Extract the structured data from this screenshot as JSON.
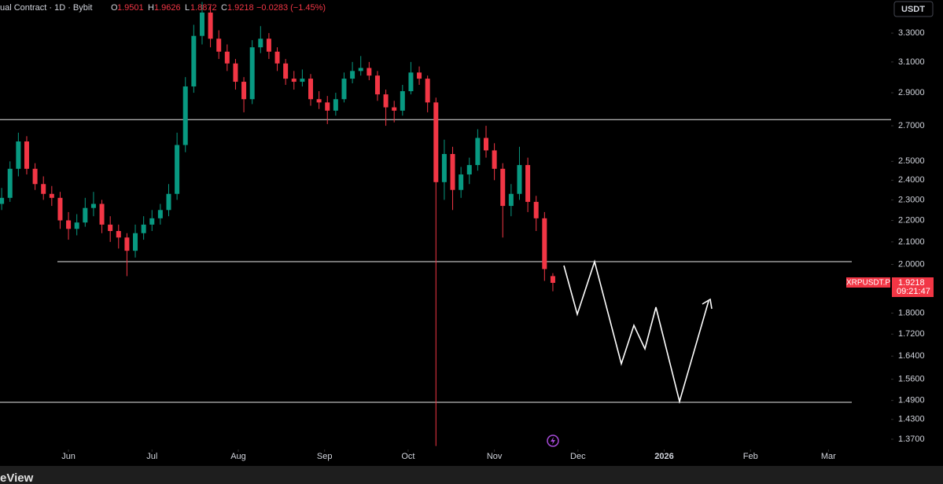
{
  "header": {
    "symbol": "ual Contract · 1D · Bybit",
    "open_label": "O",
    "high_label": "H",
    "low_label": "L",
    "close_label": "C",
    "change": "−0.0283 (−1.45%)",
    "currency_button": "USDT",
    "ticker_tag": "XRPUSDT.P",
    "countdown": "09:21:47",
    "footer": "eView"
  },
  "chart_data": {
    "type": "candlestick",
    "log": true,
    "up_color": "#089981",
    "down_color": "#f23645",
    "ylim": [
      1.34,
      3.545
    ],
    "yticks": [
      {
        "value": 3.3,
        "label": "3.3000"
      },
      {
        "value": 3.1,
        "label": "3.1000"
      },
      {
        "value": 2.9,
        "label": "2.9000"
      },
      {
        "value": 2.7,
        "label": "2.7000"
      },
      {
        "value": 2.5,
        "label": "2.5000"
      },
      {
        "value": 2.4,
        "label": "2.4000"
      },
      {
        "value": 2.3,
        "label": "2.3000"
      },
      {
        "value": 2.2,
        "label": "2.2000"
      },
      {
        "value": 2.1,
        "label": "2.1000"
      },
      {
        "value": 2,
        "label": "2.0000"
      },
      {
        "value": 1.8,
        "label": "1.8000"
      },
      {
        "value": 1.72,
        "label": "1.7200"
      },
      {
        "value": 1.64,
        "label": "1.6400"
      },
      {
        "value": 1.56,
        "label": "1.5600"
      },
      {
        "value": 1.49,
        "label": "1.4900"
      },
      {
        "value": 1.43,
        "label": "1.4300"
      },
      {
        "value": 1.37,
        "label": "1.3700"
      }
    ],
    "xlim": [
      -24.6,
      295.5
    ],
    "xticks": [
      {
        "value": 0,
        "label": "Jun"
      },
      {
        "value": 30,
        "label": "Jul"
      },
      {
        "value": 61,
        "label": "Aug"
      },
      {
        "value": 92,
        "label": "Sep"
      },
      {
        "value": 122,
        "label": "Oct"
      },
      {
        "value": 153,
        "label": "Nov"
      },
      {
        "value": 183,
        "label": "Dec"
      },
      {
        "value": 214,
        "label": "2026",
        "bold": true
      },
      {
        "value": 245,
        "label": "Feb"
      },
      {
        "value": 273,
        "label": "Mar"
      }
    ],
    "x": [
      -24,
      -21,
      -18,
      -15,
      -12,
      -9,
      -6,
      -3,
      0,
      3,
      6,
      9,
      12,
      15,
      18,
      21,
      24,
      27,
      30,
      33,
      36,
      39,
      42,
      45,
      48,
      51,
      54,
      57,
      60,
      63,
      66,
      69,
      72,
      75,
      78,
      81,
      84,
      87,
      90,
      93,
      96,
      99,
      102,
      105,
      108,
      111,
      114,
      117,
      120,
      123,
      126,
      129,
      132,
      135,
      138,
      141,
      144,
      147,
      150,
      153,
      156,
      159,
      162,
      165,
      168,
      171,
      174
    ],
    "ohlc": [
      [
        2.28,
        2.36,
        2.25,
        2.31
      ],
      [
        2.31,
        2.5,
        2.29,
        2.46
      ],
      [
        2.46,
        2.66,
        2.42,
        2.61
      ],
      [
        2.61,
        2.64,
        2.43,
        2.46
      ],
      [
        2.46,
        2.49,
        2.35,
        2.38
      ],
      [
        2.38,
        2.42,
        2.3,
        2.33
      ],
      [
        2.33,
        2.37,
        2.27,
        2.31
      ],
      [
        2.31,
        2.34,
        2.16,
        2.2
      ],
      [
        2.2,
        2.24,
        2.11,
        2.16
      ],
      [
        2.16,
        2.23,
        2.13,
        2.19
      ],
      [
        2.19,
        2.31,
        2.17,
        2.26
      ],
      [
        2.26,
        2.34,
        2.22,
        2.28
      ],
      [
        2.28,
        2.3,
        2.14,
        2.18
      ],
      [
        2.18,
        2.22,
        2.1,
        2.15
      ],
      [
        2.15,
        2.18,
        2.07,
        2.12
      ],
      [
        2.12,
        2.14,
        1.95,
        2.06
      ],
      [
        2.06,
        2.18,
        2.03,
        2.14
      ],
      [
        2.14,
        2.22,
        2.11,
        2.18
      ],
      [
        2.18,
        2.25,
        2.15,
        2.21
      ],
      [
        2.21,
        2.28,
        2.18,
        2.25
      ],
      [
        2.25,
        2.38,
        2.22,
        2.33
      ],
      [
        2.33,
        2.66,
        2.3,
        2.59
      ],
      [
        2.59,
        3.0,
        2.55,
        2.94
      ],
      [
        2.94,
        3.36,
        2.9,
        3.28
      ],
      [
        3.28,
        3.53,
        3.22,
        3.45
      ],
      [
        3.45,
        3.5,
        3.2,
        3.26
      ],
      [
        3.26,
        3.32,
        3.12,
        3.17
      ],
      [
        3.17,
        3.22,
        3.04,
        3.09
      ],
      [
        3.09,
        3.12,
        2.92,
        2.97
      ],
      [
        2.97,
        3.0,
        2.78,
        2.86
      ],
      [
        2.86,
        3.25,
        2.83,
        3.2
      ],
      [
        3.2,
        3.35,
        3.16,
        3.26
      ],
      [
        3.26,
        3.3,
        3.12,
        3.17
      ],
      [
        3.17,
        3.2,
        3.04,
        3.09
      ],
      [
        3.09,
        3.12,
        2.95,
        2.99
      ],
      [
        2.99,
        3.04,
        2.92,
        2.97
      ],
      [
        2.97,
        3.05,
        2.94,
        2.99
      ],
      [
        2.99,
        3.02,
        2.82,
        2.86
      ],
      [
        2.86,
        2.91,
        2.8,
        2.84
      ],
      [
        2.84,
        2.88,
        2.71,
        2.79
      ],
      [
        2.79,
        2.9,
        2.76,
        2.86
      ],
      [
        2.86,
        3.03,
        2.84,
        2.99
      ],
      [
        2.99,
        3.1,
        2.96,
        3.04
      ],
      [
        3.04,
        3.14,
        3.01,
        3.06
      ],
      [
        3.06,
        3.1,
        2.98,
        3.01
      ],
      [
        3.01,
        3.04,
        2.85,
        2.89
      ],
      [
        2.89,
        2.92,
        2.7,
        2.81
      ],
      [
        2.81,
        2.85,
        2.72,
        2.79
      ],
      [
        2.79,
        2.95,
        2.76,
        2.91
      ],
      [
        2.91,
        3.1,
        2.89,
        3.03
      ],
      [
        3.03,
        3.07,
        2.95,
        2.99
      ],
      [
        2.99,
        3.01,
        2.78,
        2.84
      ],
      [
        2.84,
        2.87,
        1.35,
        2.39
      ],
      [
        2.39,
        2.62,
        2.3,
        2.54
      ],
      [
        2.54,
        2.58,
        2.25,
        2.35
      ],
      [
        2.35,
        2.47,
        2.31,
        2.43
      ],
      [
        2.43,
        2.52,
        2.38,
        2.48
      ],
      [
        2.48,
        2.68,
        2.45,
        2.63
      ],
      [
        2.63,
        2.7,
        2.52,
        2.56
      ],
      [
        2.56,
        2.6,
        2.4,
        2.46
      ],
      [
        2.46,
        2.49,
        2.12,
        2.27
      ],
      [
        2.27,
        2.38,
        2.22,
        2.33
      ],
      [
        2.33,
        2.58,
        2.3,
        2.48
      ],
      [
        2.48,
        2.52,
        2.24,
        2.29
      ],
      [
        2.29,
        2.32,
        2.15,
        2.21
      ],
      [
        2.21,
        2.24,
        1.93,
        1.98
      ],
      [
        1.9501,
        1.9626,
        1.8872,
        1.9218
      ]
    ],
    "hlines": [
      2.736,
      2.012,
      1.484
    ]
  }
}
